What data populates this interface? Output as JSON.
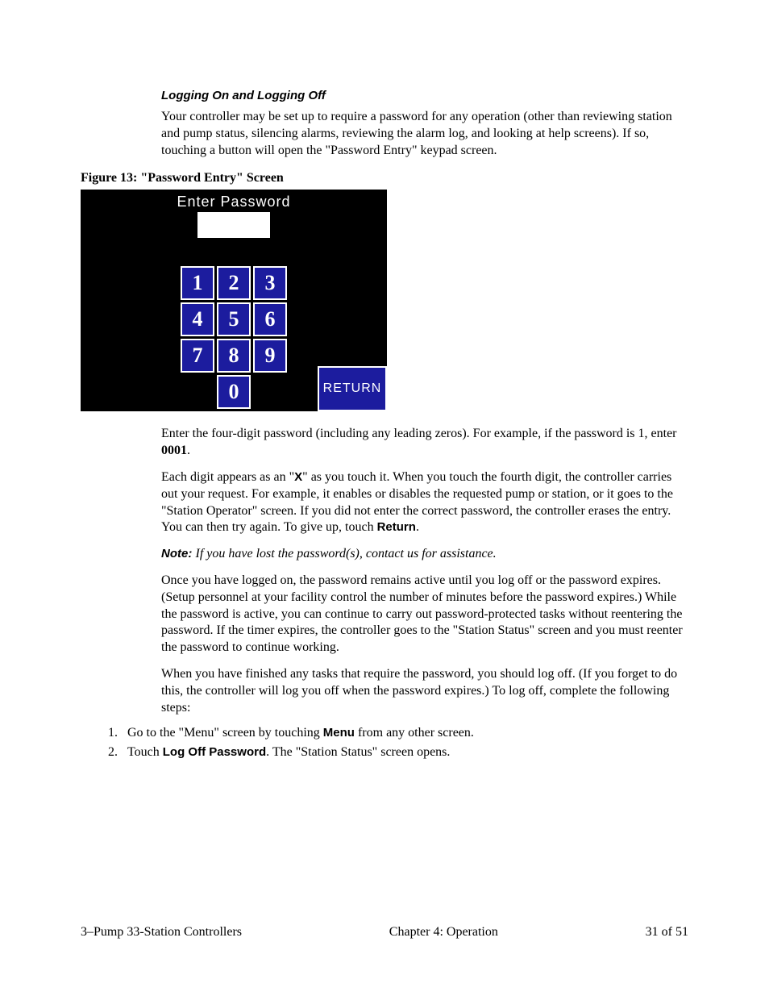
{
  "heading": "Logging On and Logging Off",
  "intro": "Your controller may be set up to require a password for any operation (other than reviewing station and pump status, silencing alarms, reviewing the alarm log, and looking at help screens). If so, touching a button will open the \"Password Entry\" keypad screen.",
  "figure_caption": "Figure 13:  \"Password Entry\" Screen",
  "screenshot": {
    "title": "Enter Password",
    "keys": [
      "1",
      "2",
      "3",
      "4",
      "5",
      "6",
      "7",
      "8",
      "9",
      "",
      "0",
      ""
    ],
    "return_label": "RETURN",
    "key_bg": "#1c1c9e",
    "key_fg": "#ffffff"
  },
  "para_enter_a": "Enter the four-digit password (including any leading zeros). For example, if the password is 1, enter ",
  "para_enter_bold": "0001",
  "para_enter_b": ".",
  "para_x_a": "Each digit appears as an \"",
  "para_x_bold": "X",
  "para_x_b": "\" as you touch it. When you touch the fourth digit, the controller carries out your request. For example, it enables or disables the requested pump or station, or it goes to the \"Station Operator\" screen. If you did not enter the correct password, the controller erases the entry. You can then try again. To give up, touch ",
  "para_x_return": "Return",
  "para_x_c": ".",
  "note_label": "Note:  ",
  "note_text": "If you have lost the password(s), contact us for assistance.",
  "para_logged": "Once you have logged on, the password remains active until you log off or the password expires. (Setup personnel at your facility control the number of minutes before the password expires.) While the password is active, you can continue to carry out password-protected tasks without reentering the password. If the timer expires, the controller goes to the \"Station Status\" screen and you must reenter the password to continue working.",
  "para_finish": "When you have finished any tasks that require the password, you should log off. (If you forget to do this, the controller will log you off when the password expires.) To log off, complete the following steps:",
  "step1_a": "Go to the \"Menu\" screen by touching ",
  "step1_bold": "Menu",
  "step1_b": " from any other screen.",
  "step2_a": "Touch ",
  "step2_bold": "Log Off Password",
  "step2_b": ". The \"Station Status\" screen opens.",
  "footer": {
    "left": "3–Pump 33-Station Controllers",
    "center": "Chapter 4:  Operation",
    "right": "31 of 51"
  }
}
